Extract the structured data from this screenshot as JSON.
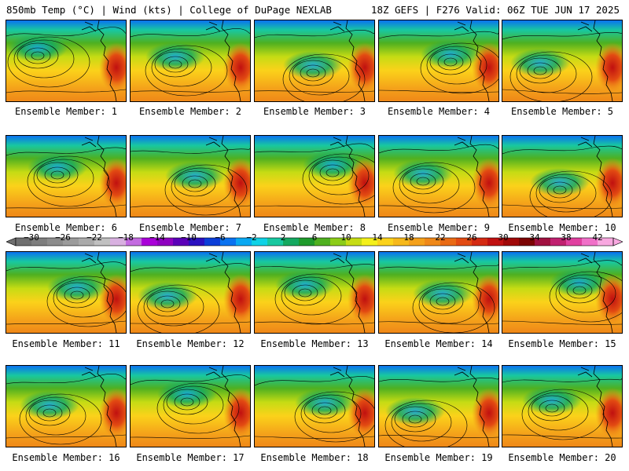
{
  "header": {
    "left": "850mb Temp (°C) | Wind (kts) | College of DuPage NEXLAB",
    "right": "18Z GEFS | F276 Valid: 06Z TUE JUN 17 2025"
  },
  "members": [
    "Ensemble Member: 1",
    "Ensemble Member: 2",
    "Ensemble Member: 3",
    "Ensemble Member: 4",
    "Ensemble Member: 5",
    "Ensemble Member: 6",
    "Ensemble Member: 7",
    "Ensemble Member: 8",
    "Ensemble Member: 9",
    "Ensemble Member: 10",
    "Ensemble Member: 11",
    "Ensemble Member: 12",
    "Ensemble Member: 13",
    "Ensemble Member: 14",
    "Ensemble Member: 15",
    "Ensemble Member: 16",
    "Ensemble Member: 17",
    "Ensemble Member: 18",
    "Ensemble Member: 19",
    "Ensemble Member: 20"
  ],
  "colorbar": {
    "ticks": [
      "−30",
      "−26",
      "−22",
      "−18",
      "−14",
      "−10",
      "−6",
      "−2",
      "2",
      "6",
      "10",
      "14",
      "18",
      "22",
      "26",
      "30",
      "34",
      "38",
      "42"
    ],
    "min": -32,
    "max": 44,
    "colors": [
      "#6f6f6f",
      "#7e7e7e",
      "#8c8c8c",
      "#9b9b9b",
      "#aaaaaa",
      "#c0c0c0",
      "#d8b0e0",
      "#c36be0",
      "#a900d8",
      "#8f00c0",
      "#5b00b8",
      "#2a10c0",
      "#0b3ed8",
      "#0a72f0",
      "#09a8f2",
      "#0fd2e6",
      "#18c8a0",
      "#14a860",
      "#1f9a2c",
      "#4fb020",
      "#8ccc18",
      "#c6dc14",
      "#f4f01a",
      "#fbd21a",
      "#f6b81a",
      "#f4a01a",
      "#ef8818",
      "#e96a14",
      "#e24a12",
      "#d42a12",
      "#c01010",
      "#a00808",
      "#7c0404",
      "#a01040",
      "#c02070",
      "#e040a0",
      "#f070c8",
      "#f8a8e0"
    ]
  }
}
